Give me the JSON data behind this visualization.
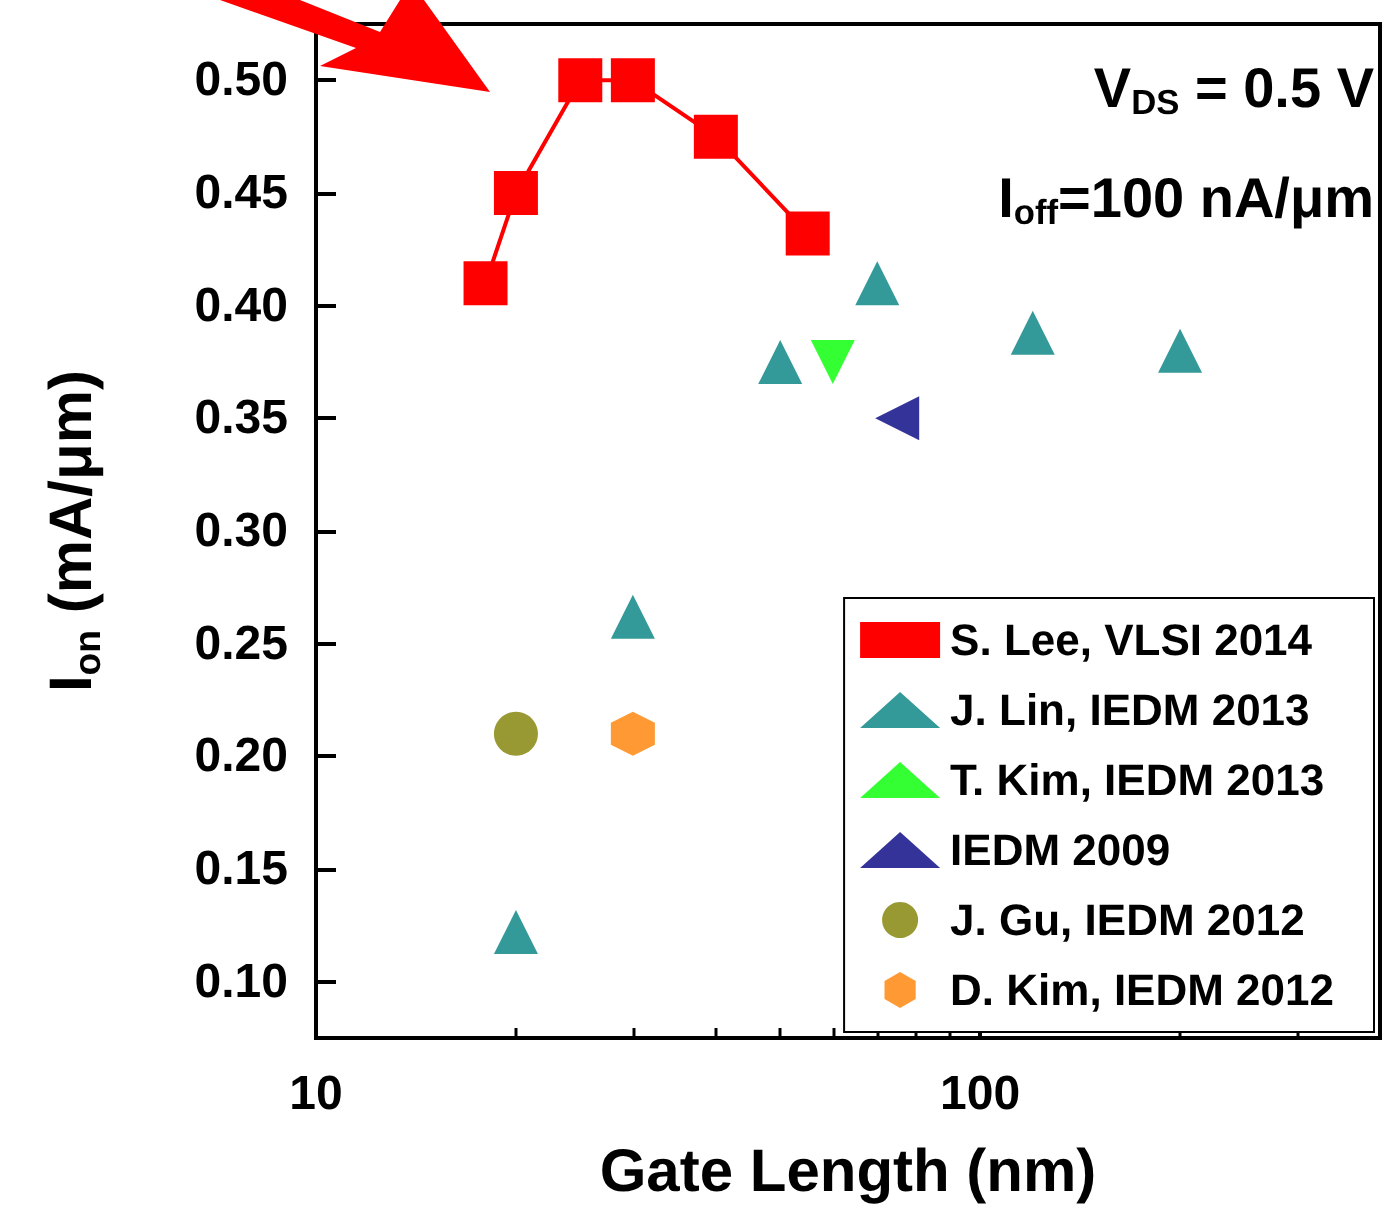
{
  "chart_data": {
    "type": "scatter",
    "xlabel": "Gate Length (nm)",
    "ylabel": "I$_{on}$ (mA/μm)",
    "annotations": [
      "V$_{DS}$ = 0.5 V",
      "I$_{off}$=100 nA/μm"
    ],
    "log": "x",
    "xlim": [
      10,
      400
    ],
    "xticks": [
      10,
      100
    ],
    "ylim": [
      0.075,
      0.525
    ],
    "yticks": [
      {
        "value": 0.1,
        "label": "0.10"
      },
      {
        "value": 0.15,
        "label": "0.15"
      },
      {
        "value": 0.2,
        "label": "0.20"
      },
      {
        "value": 0.25,
        "label": "0.25"
      },
      {
        "value": 0.3,
        "label": "0.30"
      },
      {
        "value": 0.35,
        "label": "0.35"
      },
      {
        "value": 0.4,
        "label": "0.40"
      },
      {
        "value": 0.45,
        "label": "0.45"
      },
      {
        "value": 0.5,
        "label": "0.50"
      }
    ],
    "grid": false,
    "legend": "bottom right",
    "series": [
      {
        "name": "S. Lee, VLSI 2014",
        "type": "line",
        "marker": "square",
        "color": "#ff0000",
        "x": [
          18,
          20,
          25,
          30,
          40,
          55
        ],
        "values": [
          0.41,
          0.45,
          0.5,
          0.5,
          0.475,
          0.432
        ]
      },
      {
        "name": "J. Lin, IEDM 2013",
        "marker": "triangle",
        "color": "#008080",
        "x": [
          20,
          30,
          50,
          70,
          120,
          200
        ],
        "values": [
          0.122,
          0.262,
          0.375,
          0.41,
          0.388,
          0.38
        ]
      },
      {
        "name": "T. Kim, IEDM 2013",
        "marker": "triangle-down",
        "color": "#00ff00",
        "x": [
          60
        ],
        "values": [
          0.375
        ]
      },
      {
        "name": "IEDM 2009",
        "marker": "triangle-left",
        "color": "#000080",
        "x": [
          75
        ],
        "values": [
          0.35
        ]
      },
      {
        "name": "J. Gu, IEDM 2012",
        "marker": "circle",
        "color": "#808000",
        "x": [
          20
        ],
        "values": [
          0.21
        ]
      },
      {
        "name": "D. Kim, IEDM 2012",
        "color": "#ff8000",
        "x": [
          30
        ],
        "values": [
          0.21
        ]
      }
    ]
  }
}
